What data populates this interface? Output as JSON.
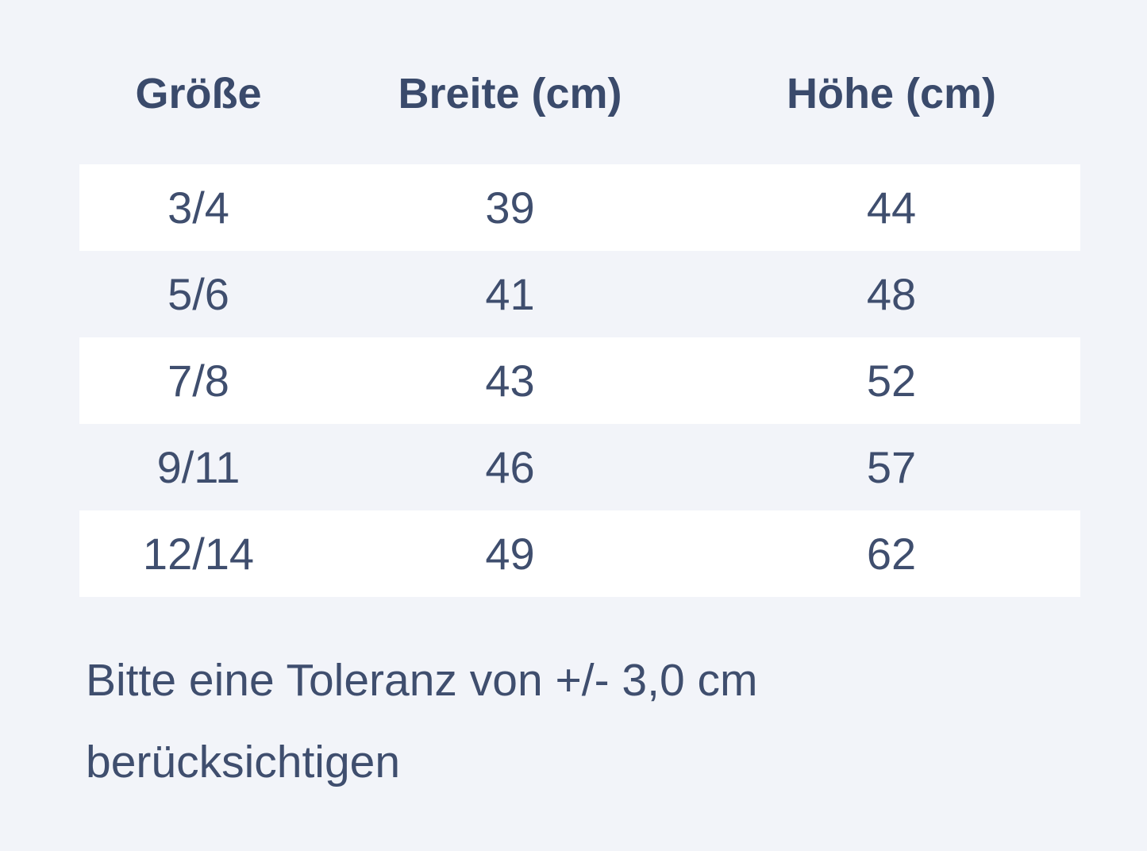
{
  "table": {
    "headers": [
      "Größe",
      "Breite (cm)",
      "Höhe (cm)"
    ],
    "rows": [
      [
        "3/4",
        "39",
        "44"
      ],
      [
        "5/6",
        "41",
        "48"
      ],
      [
        "7/8",
        "43",
        "52"
      ],
      [
        "9/11",
        "46",
        "57"
      ],
      [
        "12/14",
        "49",
        "62"
      ]
    ]
  },
  "note": {
    "line1": "Bitte eine Toleranz von +/- 3,0 cm",
    "line2": "berücksichtigen"
  },
  "colors": {
    "page_background": "#f2f4f9",
    "row_background": "#ffffff",
    "text": "#3f4e6e",
    "header_text": "#3a4a6b"
  }
}
